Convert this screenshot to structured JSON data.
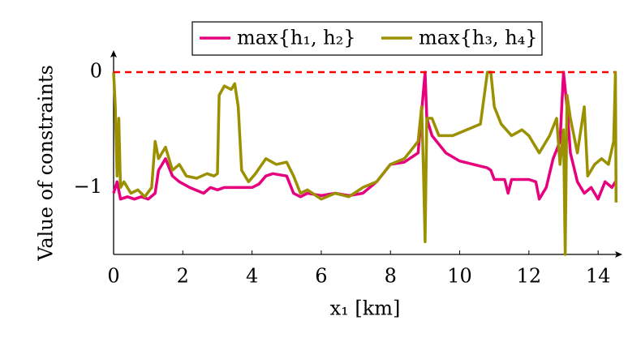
{
  "chart_data": {
    "type": "line",
    "xlabel": "x₁ [km]",
    "ylabel": "Value of constraints",
    "xlim": [
      0,
      14.7
    ],
    "ylim": [
      -1.58,
      0.19
    ],
    "xticks": [
      0,
      2,
      4,
      6,
      8,
      10,
      12,
      14
    ],
    "yticks": [
      0,
      {
        "value": -1,
        "label": "−1"
      }
    ],
    "hline": {
      "value": 0,
      "color": "#ff0000"
    },
    "series": [
      {
        "name": "max{h₁, h₂}",
        "color": "#e6007e",
        "x": [
          0,
          0.1,
          0.2,
          0.4,
          0.6,
          0.8,
          1.0,
          1.2,
          1.3,
          1.5,
          1.7,
          1.9,
          2.2,
          2.6,
          2.8,
          3.0,
          3.2,
          3.6,
          4.0,
          4.2,
          4.4,
          4.6,
          5.0,
          5.2,
          5.4,
          5.6,
          6.0,
          6.4,
          6.8,
          7.2,
          7.6,
          8.0,
          8.4,
          8.8,
          9.0,
          9.05,
          9.2,
          9.6,
          10.0,
          10.4,
          10.8,
          10.9,
          11.0,
          11.3,
          11.4,
          11.5,
          12.0,
          12.2,
          12.3,
          12.5,
          12.7,
          12.9,
          13.0,
          13.1,
          13.2,
          13.4,
          13.6,
          13.8,
          14.0,
          14.2,
          14.4,
          14.5
        ],
        "values": [
          -1.05,
          -0.95,
          -1.1,
          -1.08,
          -1.1,
          -1.08,
          -1.1,
          -1.05,
          -0.85,
          -0.75,
          -0.9,
          -0.95,
          -1.0,
          -1.05,
          -1.0,
          -1.02,
          -1.0,
          -1.0,
          -1.0,
          -0.97,
          -0.9,
          -0.88,
          -0.9,
          -1.05,
          -1.08,
          -1.05,
          -1.07,
          -1.05,
          -1.07,
          -1.05,
          -0.95,
          -0.8,
          -0.78,
          -0.7,
          0,
          -0.4,
          -0.55,
          -0.7,
          -0.77,
          -0.8,
          -0.83,
          -0.85,
          -0.93,
          -0.93,
          -1.05,
          -0.93,
          -0.93,
          -0.95,
          -1.1,
          -1.0,
          -0.75,
          -0.6,
          0,
          -0.3,
          -0.7,
          -0.95,
          -1.05,
          -1.0,
          -1.1,
          -0.95,
          -1.0,
          -0.95
        ]
      },
      {
        "name": "max{h₃, h₄}",
        "color": "#9b9000",
        "x": [
          0,
          0.05,
          0.1,
          0.15,
          0.2,
          0.3,
          0.5,
          0.7,
          0.9,
          1.1,
          1.2,
          1.3,
          1.5,
          1.7,
          1.9,
          2.1,
          2.4,
          2.7,
          2.9,
          3.0,
          3.05,
          3.2,
          3.4,
          3.5,
          3.6,
          3.7,
          3.9,
          4.1,
          4.4,
          4.7,
          5.0,
          5.2,
          5.4,
          5.6,
          6.0,
          6.4,
          6.8,
          7.2,
          7.6,
          8.0,
          8.4,
          8.8,
          8.9,
          8.95,
          9.0,
          9.05,
          9.2,
          9.4,
          9.8,
          10.2,
          10.6,
          10.8,
          10.9,
          11.0,
          11.2,
          11.5,
          11.8,
          12.0,
          12.3,
          12.6,
          12.8,
          12.9,
          13.0,
          13.05,
          13.1,
          13.2,
          13.4,
          13.6,
          13.7,
          13.9,
          14.1,
          14.3,
          14.45,
          14.5,
          14.52
        ],
        "values": [
          0,
          -0.3,
          -0.9,
          -0.4,
          -1.0,
          -0.95,
          -1.05,
          -1.02,
          -1.08,
          -1.0,
          -0.6,
          -0.75,
          -0.65,
          -0.85,
          -0.8,
          -0.9,
          -0.92,
          -0.88,
          -0.9,
          -0.88,
          -0.2,
          -0.12,
          -0.15,
          -0.1,
          -0.3,
          -0.85,
          -0.95,
          -0.88,
          -0.75,
          -0.8,
          -0.78,
          -0.9,
          -1.05,
          -1.02,
          -1.1,
          -1.05,
          -1.08,
          -1.0,
          -0.95,
          -0.8,
          -0.75,
          -0.6,
          -0.3,
          -0.8,
          -1.47,
          -0.4,
          -0.4,
          -0.55,
          -0.55,
          -0.5,
          -0.45,
          0,
          0,
          -0.3,
          -0.45,
          -0.55,
          -0.5,
          -0.55,
          -0.7,
          -0.55,
          -0.4,
          -0.8,
          -0.5,
          -1.58,
          -0.2,
          -0.4,
          -0.7,
          -0.3,
          -0.9,
          -0.8,
          -0.75,
          -0.8,
          -0.6,
          0,
          -1.13
        ]
      }
    ]
  }
}
